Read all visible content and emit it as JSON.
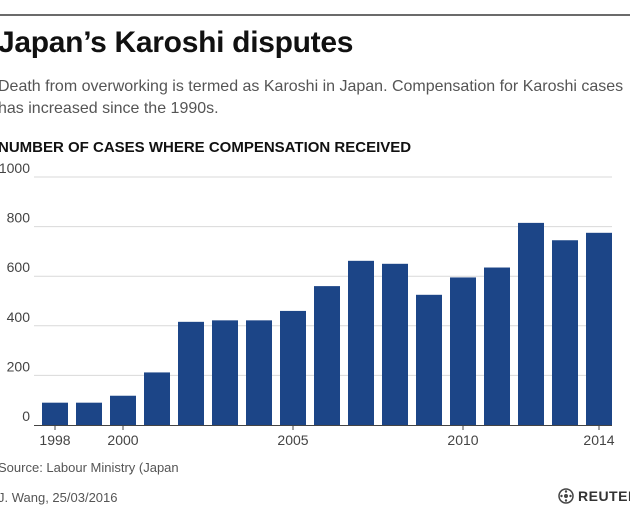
{
  "header": {
    "title": "Japan’s Karoshi disputes",
    "subtitle": "Death from overworking is termed as Karoshi in Japan. Compensation for Karoshi cases has increased since the 1990s.",
    "chart_heading": "NUMBER OF CASES WHERE COMPENSATION RECEIVED"
  },
  "footer": {
    "source": "Source: Labour Ministry (Japan",
    "credit": "J. Wang, 25/03/2016",
    "logo_text": "REUTERS"
  },
  "colors": {
    "bar": "#1c4587",
    "gridline": "#d9d9d9",
    "axis": "#444444"
  },
  "chart_data": {
    "type": "bar",
    "title": "NUMBER OF CASES WHERE COMPENSATION RECEIVED",
    "xlabel": "",
    "ylabel": "",
    "categories": [
      "1998",
      "1999",
      "2000",
      "2001",
      "2002",
      "2003",
      "2004",
      "2005",
      "2006",
      "2007",
      "2008",
      "2009",
      "2010",
      "2011",
      "2012",
      "2013",
      "2014"
    ],
    "values": [
      90,
      90,
      118,
      212,
      416,
      422,
      422,
      460,
      560,
      662,
      650,
      525,
      595,
      635,
      815,
      745,
      775
    ],
    "x_tick_labels": [
      "1998",
      "2000",
      "2005",
      "2010",
      "2014"
    ],
    "y_ticks": [
      0,
      200,
      400,
      600,
      800,
      1000
    ],
    "y_tick_labels": [
      "0",
      "200",
      "400",
      "600",
      "800",
      "1000"
    ],
    "ylim": [
      0,
      1000
    ],
    "grid": true,
    "legend": "none"
  }
}
